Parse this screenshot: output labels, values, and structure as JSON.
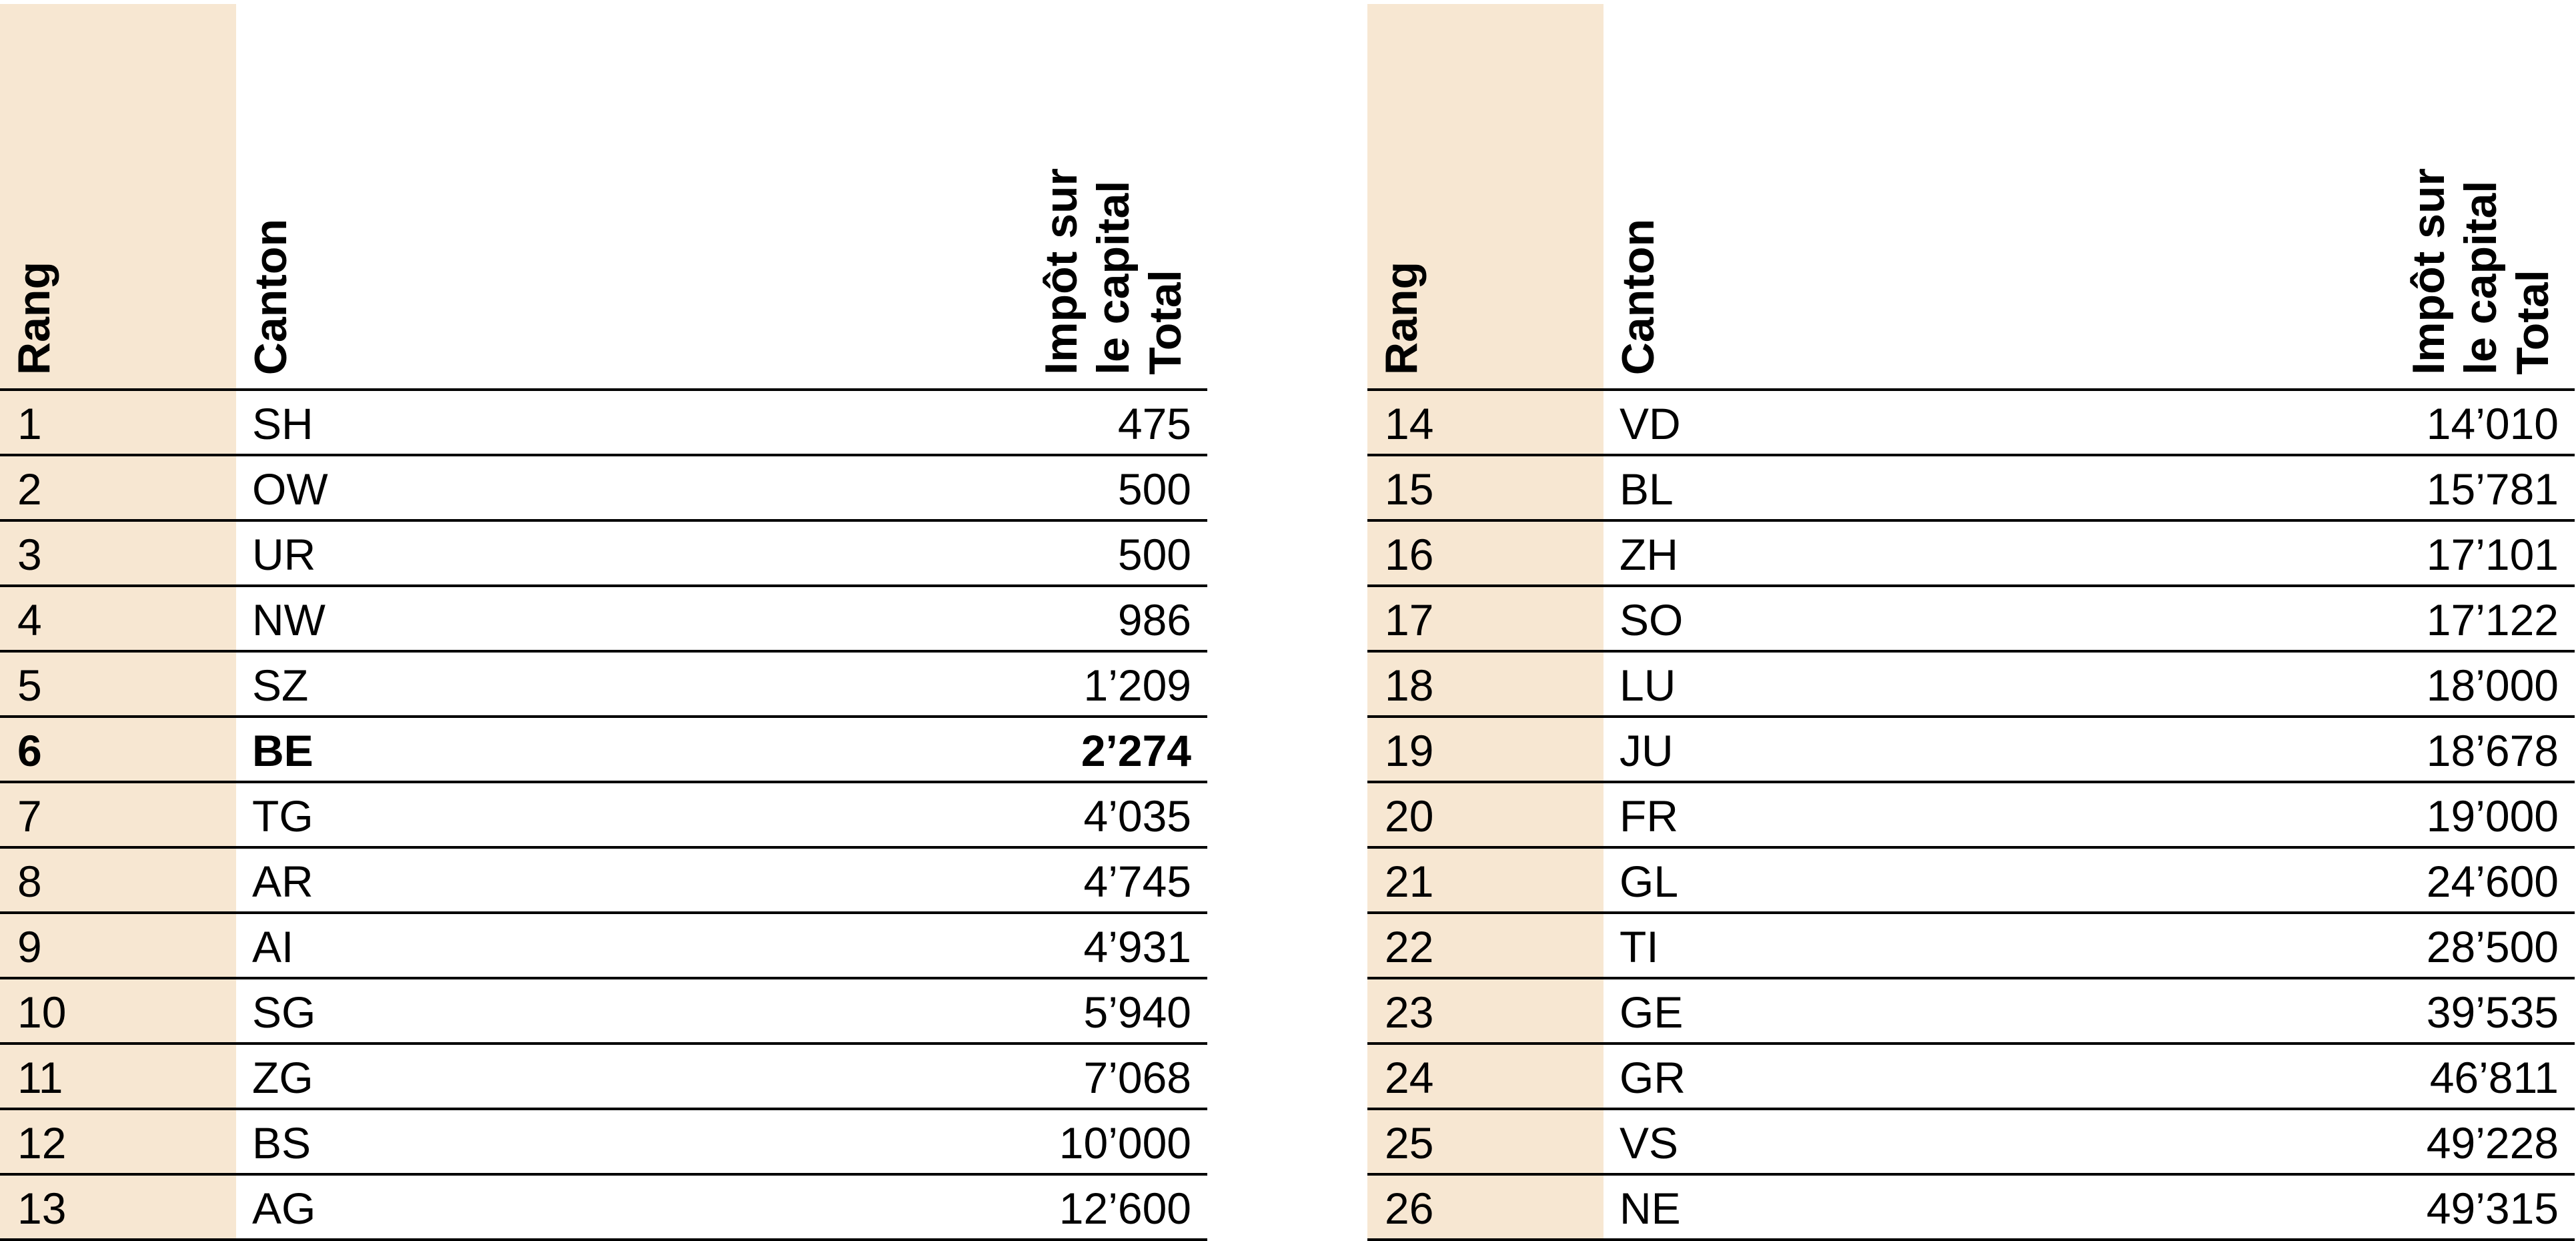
{
  "headers": {
    "rank": "Rang",
    "canton": "Canton",
    "total_line1": "Impôt sur",
    "total_line2": "le capital",
    "total_line3": "Total"
  },
  "colors": {
    "rank_column_bg": "#f7e7d2",
    "rule": "#000000"
  },
  "highlighted_rank": "6",
  "left_table": [
    {
      "rank": "1",
      "canton": "SH",
      "total": "475"
    },
    {
      "rank": "2",
      "canton": "OW",
      "total": "500"
    },
    {
      "rank": "3",
      "canton": "UR",
      "total": "500"
    },
    {
      "rank": "4",
      "canton": "NW",
      "total": "986"
    },
    {
      "rank": "5",
      "canton": "SZ",
      "total": "1’209"
    },
    {
      "rank": "6",
      "canton": "BE",
      "total": "2’274"
    },
    {
      "rank": "7",
      "canton": "TG",
      "total": "4’035"
    },
    {
      "rank": "8",
      "canton": "AR",
      "total": "4’745"
    },
    {
      "rank": "9",
      "canton": "AI",
      "total": "4’931"
    },
    {
      "rank": "10",
      "canton": "SG",
      "total": "5’940"
    },
    {
      "rank": "11",
      "canton": "ZG",
      "total": "7’068"
    },
    {
      "rank": "12",
      "canton": "BS",
      "total": "10’000"
    },
    {
      "rank": "13",
      "canton": "AG",
      "total": "12’600"
    }
  ],
  "right_table": [
    {
      "rank": "14",
      "canton": "VD",
      "total": "14’010"
    },
    {
      "rank": "15",
      "canton": "BL",
      "total": "15’781"
    },
    {
      "rank": "16",
      "canton": "ZH",
      "total": "17’101"
    },
    {
      "rank": "17",
      "canton": "SO",
      "total": "17’122"
    },
    {
      "rank": "18",
      "canton": "LU",
      "total": "18’000"
    },
    {
      "rank": "19",
      "canton": "JU",
      "total": "18’678"
    },
    {
      "rank": "20",
      "canton": "FR",
      "total": "19’000"
    },
    {
      "rank": "21",
      "canton": "GL",
      "total": "24’600"
    },
    {
      "rank": "22",
      "canton": "TI",
      "total": "28’500"
    },
    {
      "rank": "23",
      "canton": "GE",
      "total": "39’535"
    },
    {
      "rank": "24",
      "canton": "GR",
      "total": "46’811"
    },
    {
      "rank": "25",
      "canton": "VS",
      "total": "49’228"
    },
    {
      "rank": "26",
      "canton": "NE",
      "total": "49’315"
    }
  ]
}
